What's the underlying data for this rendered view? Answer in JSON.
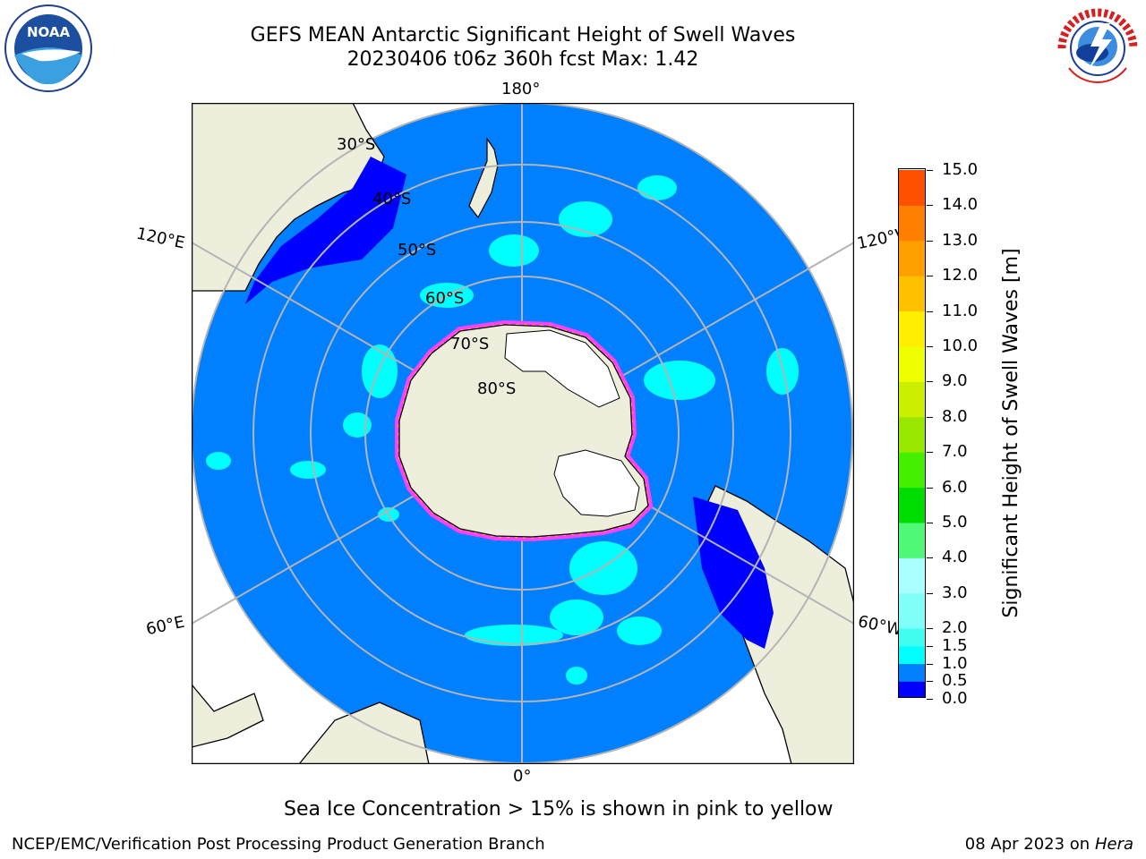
{
  "header": {
    "title": "GEFS MEAN Antarctic Significant Height of Swell Waves",
    "subtitle": "20230406 t06z 360h fcst   Max: 1.42"
  },
  "logos": {
    "left": "noaa-logo",
    "right": "national-weather-service-logo"
  },
  "chart_data": {
    "type": "heatmap",
    "projection": "south polar stereographic",
    "field": "Significant Height of Swell Waves",
    "max_value": 1.42,
    "lon_labels": [
      "180°",
      "120°E",
      "120°W",
      "60°E",
      "60°W",
      "0°"
    ],
    "lat_labels": [
      "30°S",
      "40°S",
      "50°S",
      "60°S",
      "70°S",
      "80°S"
    ],
    "colorbar": {
      "label": "Significant Height of Swell Waves [m]",
      "ticks": [
        "0.0",
        "0.5",
        "1.0",
        "1.5",
        "2.0",
        "3.0",
        "4.0",
        "5.0",
        "6.0",
        "7.0",
        "8.0",
        "9.0",
        "10.0",
        "11.0",
        "12.0",
        "13.0",
        "14.0",
        "15.0"
      ],
      "colors": [
        "#0000ff",
        "#0080ff",
        "#00ffff",
        "#40fff0",
        "#80fff8",
        "#aaffff",
        "#50f878",
        "#00dd00",
        "#44f000",
        "#99e600",
        "#ccee00",
        "#eeff00",
        "#ffee00",
        "#ffc000",
        "#ffa000",
        "#ff8000",
        "#ff5000",
        "#ff2000",
        "#ff0000"
      ]
    },
    "colors": {
      "ocean": "#0080ff",
      "land": "#eeeedd",
      "low_swell": "#0000ff",
      "swell_1_to_1_5": "#00ffff",
      "sea_ice_low": "#ff40ff",
      "sea_ice_high": "#ffcc00"
    }
  },
  "annotation": "Sea Ice Concentration > 15% is shown in pink to yellow",
  "footer": {
    "producer": "NCEP/EMC/Verification Post Processing Product Generation Branch",
    "date": "08 Apr 2023 on ",
    "machine": "Hera"
  }
}
